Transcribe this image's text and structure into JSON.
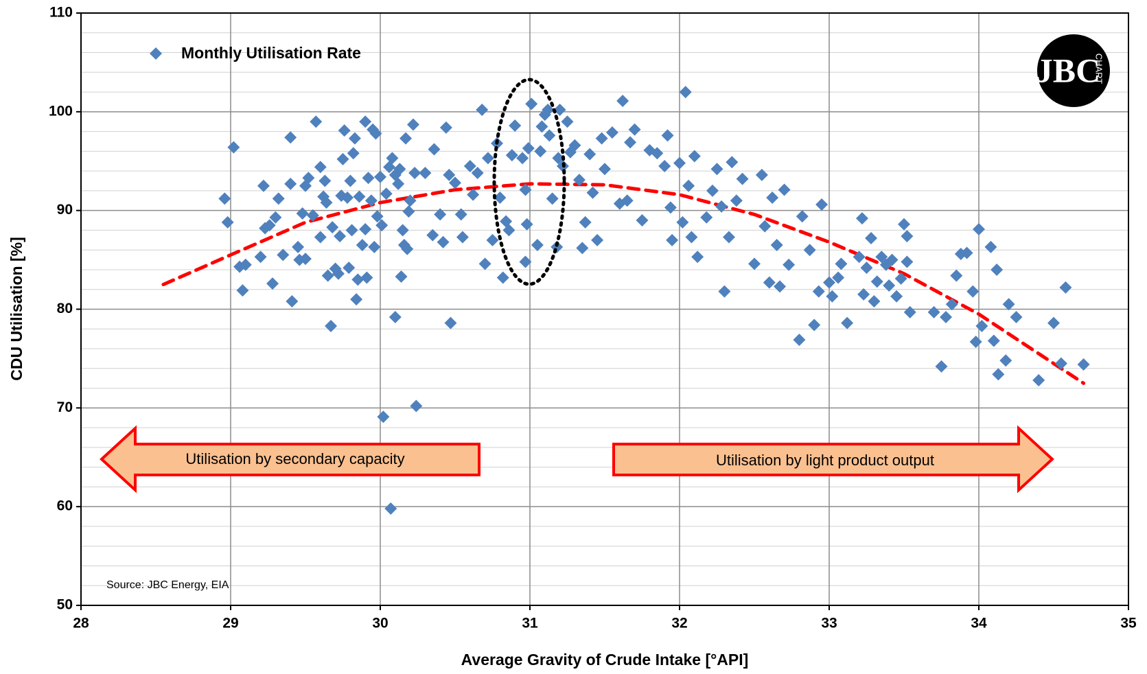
{
  "chart_data": {
    "type": "scatter",
    "x_label": "Average Gravity of Crude Intake [°API]",
    "y_label": "CDU Utilisation [%]",
    "xlim": [
      28,
      35
    ],
    "xticks": [
      28,
      29,
      30,
      31,
      32,
      33,
      34,
      35
    ],
    "ylim": [
      50,
      110
    ],
    "yticks": [
      50,
      60,
      70,
      80,
      90,
      100,
      110
    ],
    "yminorticks": [
      52,
      54,
      56,
      58,
      62,
      64,
      66,
      68,
      72,
      74,
      76,
      78,
      82,
      84,
      86,
      88,
      92,
      94,
      96,
      98,
      102,
      104,
      106,
      108
    ],
    "grid": true,
    "legend_position": "upper left",
    "series": [
      {
        "name": "Monthly Utilisation Rate",
        "color": "#4f81bd",
        "x": [
          28.96,
          28.98,
          29.02,
          29.06,
          29.08,
          29.1,
          29.2,
          29.22,
          29.23,
          29.26,
          29.28,
          29.3,
          29.32,
          29.35,
          29.4,
          29.4,
          29.41,
          29.45,
          29.46,
          29.48,
          29.5,
          29.5,
          29.52,
          29.55,
          29.57,
          29.6,
          29.6,
          29.62,
          29.63,
          29.64,
          29.65,
          29.67,
          29.68,
          29.7,
          29.72,
          29.73,
          29.74,
          29.75,
          29.76,
          29.78,
          29.79,
          29.8,
          29.81,
          29.82,
          29.83,
          29.84,
          29.85,
          29.86,
          29.88,
          29.9,
          29.9,
          29.91,
          29.92,
          29.94,
          29.95,
          29.96,
          29.97,
          29.98,
          30,
          30.01,
          30.02,
          30.04,
          30.06,
          30.07,
          30.08,
          30.1,
          30.1,
          30.12,
          30.13,
          30.14,
          30.15,
          30.16,
          30.17,
          30.18,
          30.19,
          30.2,
          30.22,
          30.23,
          30.24,
          30.3,
          30.35,
          30.36,
          30.4,
          30.42,
          30.44,
          30.46,
          30.47,
          30.5,
          30.54,
          30.55,
          30.6,
          30.62,
          30.65,
          30.68,
          30.7,
          30.72,
          30.75,
          30.78,
          30.8,
          30.82,
          30.84,
          30.86,
          30.88,
          30.9,
          30.95,
          30.97,
          30.98,
          30.97,
          30.99,
          31.01,
          31.05,
          31.07,
          31.08,
          31.1,
          31.12,
          31.13,
          31.15,
          31.18,
          31.19,
          31.2,
          31.22,
          31.25,
          31.27,
          31.3,
          31.33,
          31.35,
          31.37,
          31.4,
          31.42,
          31.45,
          31.48,
          31.5,
          31.55,
          31.6,
          31.62,
          31.65,
          31.67,
          31.7,
          31.75,
          31.8,
          31.85,
          31.9,
          31.92,
          31.94,
          31.95,
          32,
          32.02,
          32.04,
          32.06,
          32.08,
          32.1,
          32.12,
          32.18,
          32.22,
          32.25,
          32.28,
          32.3,
          32.33,
          32.35,
          32.38,
          32.42,
          32.5,
          32.55,
          32.57,
          32.6,
          32.62,
          32.65,
          32.67,
          32.7,
          32.73,
          32.8,
          32.82,
          32.87,
          32.9,
          32.93,
          32.95,
          33,
          33.02,
          33.06,
          33.08,
          33.12,
          33.2,
          33.22,
          33.23,
          33.25,
          33.28,
          33.3,
          33.32,
          33.35,
          33.38,
          33.4,
          33.42,
          33.45,
          33.48,
          33.5,
          33.52,
          33.54,
          33.52,
          33.7,
          33.75,
          33.78,
          33.82,
          33.85,
          33.88,
          33.92,
          33.96,
          33.98,
          34,
          34.02,
          34.08,
          34.1,
          34.12,
          34.13,
          34.18,
          34.2,
          34.25,
          34.4,
          34.5,
          34.55,
          34.58,
          34.7
        ],
        "values": [
          91.2,
          88.8,
          96.4,
          84.3,
          81.9,
          84.5,
          85.3,
          92.5,
          88.2,
          88.5,
          82.6,
          89.3,
          91.2,
          85.5,
          92.7,
          97.4,
          80.8,
          86.3,
          85,
          89.7,
          85.1,
          92.5,
          93.3,
          89.5,
          99,
          87.3,
          94.4,
          91.4,
          93,
          90.8,
          83.4,
          78.3,
          88.3,
          84.1,
          83.6,
          87.4,
          91.5,
          95.2,
          98.1,
          91.3,
          84.2,
          93,
          88,
          95.8,
          97.3,
          81,
          83,
          91.4,
          86.5,
          99,
          88.1,
          83.2,
          93.3,
          91,
          98.2,
          86.3,
          97.8,
          89.4,
          93.4,
          88.5,
          69.1,
          91.7,
          94.4,
          59.8,
          95.3,
          93.6,
          79.2,
          92.7,
          94.2,
          83.3,
          88,
          86.5,
          97.3,
          86.1,
          89.9,
          91,
          98.7,
          93.8,
          70.2,
          93.8,
          87.5,
          96.2,
          89.6,
          86.8,
          98.4,
          93.6,
          78.6,
          92.8,
          89.6,
          87.3,
          94.5,
          91.6,
          93.8,
          100.2,
          84.6,
          95.3,
          87,
          96.8,
          91.3,
          83.2,
          88.9,
          88,
          95.6,
          98.6,
          95.3,
          92.1,
          88.6,
          84.8,
          96.3,
          100.8,
          86.5,
          96,
          98.5,
          99.7,
          100.2,
          97.6,
          91.2,
          86.3,
          95.3,
          100.2,
          94.5,
          99,
          95.9,
          96.6,
          93.1,
          86.2,
          88.8,
          95.7,
          91.8,
          87,
          97.3,
          94.2,
          97.9,
          90.7,
          101.1,
          91,
          96.9,
          98.2,
          89,
          96.1,
          95.8,
          94.5,
          97.6,
          90.3,
          87,
          94.8,
          88.8,
          102,
          92.5,
          87.3,
          95.5,
          85.3,
          89.3,
          92,
          94.2,
          90.4,
          81.8,
          87.3,
          94.9,
          91,
          93.2,
          84.6,
          93.6,
          88.4,
          82.7,
          91.3,
          86.5,
          82.3,
          92.1,
          84.5,
          76.9,
          89.4,
          86,
          78.4,
          81.8,
          90.6,
          82.7,
          81.3,
          83.2,
          84.6,
          78.6,
          85.3,
          89.2,
          81.5,
          84.2,
          87.2,
          80.8,
          82.8,
          85.3,
          84.5,
          82.4,
          85,
          81.3,
          83.1,
          88.6,
          87.4,
          79.7,
          84.8,
          79.7,
          74.2,
          79.2,
          80.5,
          83.4,
          85.6,
          85.7,
          81.8,
          76.7,
          88.1,
          78.3,
          86.3,
          76.8,
          84,
          73.4,
          74.8,
          80.5,
          79.2,
          72.8,
          78.6,
          74.5,
          82.2,
          74.4
        ]
      }
    ],
    "trendline": {
      "color": "#ff0000",
      "x": [
        28.55,
        29,
        29.5,
        30,
        30.5,
        31,
        31.5,
        32,
        32.5,
        33,
        33.5,
        34,
        34.7
      ],
      "values": [
        82.5,
        85.5,
        88.8,
        90.8,
        92.1,
        92.7,
        92.6,
        91.6,
        89.6,
        86.8,
        83.6,
        79.5,
        72.5
      ]
    },
    "annotations": {
      "left_arrow": "Utilisation by  secondary capacity",
      "right_arrow": "Utilisation by light product output",
      "source": "Source: JBC Energy, EIA"
    },
    "logo": {
      "letters": "JBC",
      "word": "CHART"
    }
  }
}
